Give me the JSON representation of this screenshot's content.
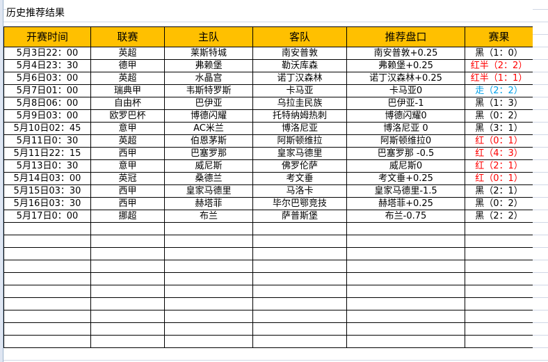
{
  "title": "历史推荐结果",
  "headers": [
    "开赛时间",
    "联赛",
    "主队",
    "客队",
    "推荐盘口",
    "赛果"
  ],
  "rows": [
    [
      "5月3日22：00",
      "英超",
      "莱斯特城",
      "南安普敦",
      "南安普敦+0.25",
      "黑（1：0）",
      "black"
    ],
    [
      "5月4日23：30",
      "德甲",
      "弗赖堡",
      "勒沃库森",
      "弗赖堡+0.25",
      "红半（2：2）",
      "red"
    ],
    [
      "5月6日03：00",
      "英超",
      "水晶宫",
      "诺丁汉森林",
      "诺丁汉森林+0.25",
      "红半（1：1）",
      "red"
    ],
    [
      "5月7日01：00",
      "瑞典甲",
      "韦斯特罗斯",
      "卡马亚",
      "卡马亚0",
      "走（2：2）",
      "blue"
    ],
    [
      "5月8日06：00",
      "自由杯",
      "巴伊亚",
      "乌拉圭民族",
      "巴伊亚-1",
      "黑（1：3）",
      "black"
    ],
    [
      "5月9日03：00",
      "欧罗巴杯",
      "博德闪耀",
      "托特纳姆热刺",
      "博德闪耀0",
      "黑（0：2）",
      "black"
    ],
    [
      "5月10日02：45",
      "意甲",
      "AC米兰",
      "博洛尼亚",
      "博洛尼亚 0",
      "黑（3：1）",
      "black"
    ],
    [
      "5月11日0：30",
      "英超",
      "伯恩茅斯",
      "阿斯顿维拉",
      "阿斯顿维拉0",
      "红（0：1）",
      "red"
    ],
    [
      "5月11日22：15",
      "西甲",
      "巴塞罗那",
      "皇家马德里",
      "巴塞罗那 -0.5",
      "红（4：3）",
      "red"
    ],
    [
      "5月13日0：30",
      "意甲",
      "威尼斯",
      "佛罗伦萨",
      "威尼斯0",
      "红（2：1）",
      "red"
    ],
    [
      "5月14日03：00",
      "英冠",
      "桑德兰",
      "考文垂",
      "考文垂+0.25",
      "红（0：1）",
      "red"
    ],
    [
      "5月15日03：30",
      "西甲",
      "皇家马德里",
      "马洛卡",
      "皇家马德里-1.5",
      "黑（2：1）",
      "black"
    ],
    [
      "5月16日03：30",
      "西甲",
      "赫塔菲",
      "毕尔巴鄂竞技",
      "赫塔菲+0.25",
      "黑（0：2）",
      "black"
    ],
    [
      "5月17日0：00",
      "挪超",
      "布兰",
      "萨普斯堡",
      "布兰-0.75",
      "黑（2：2）",
      "black"
    ]
  ],
  "colors": {
    "header_bg": "#ffc000",
    "red": "#ff0000",
    "blue": "#00a0e9"
  }
}
